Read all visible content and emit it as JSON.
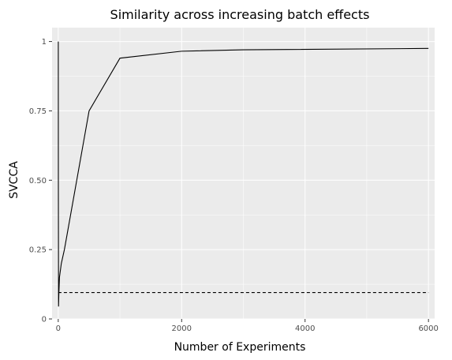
{
  "chart_data": {
    "type": "line",
    "title": "Similarity across increasing batch effects",
    "xlabel": "Number of Experiments",
    "ylabel": "SVCCA",
    "xlim": [
      -100,
      6100
    ],
    "ylim": [
      0,
      1.05
    ],
    "x_ticks": [
      0,
      2000,
      4000,
      6000
    ],
    "x_tick_labels": [
      "0",
      "2000",
      "4000",
      "6000"
    ],
    "y_ticks": [
      0,
      0.25,
      0.5,
      0.75,
      1
    ],
    "y_tick_labels": [
      "0",
      "0.25",
      "0.50",
      "0.75",
      "1"
    ],
    "grid": true,
    "background": "#ebebeb",
    "grid_color": "#ffffff",
    "series": [
      {
        "style": "solid",
        "color": "#000000",
        "x": [
          1,
          2,
          5,
          10,
          20,
          50,
          100,
          500,
          1000,
          2000,
          3000,
          6000
        ],
        "y": [
          1.0,
          0.5,
          0.045,
          0.09,
          0.15,
          0.2,
          0.25,
          0.75,
          0.94,
          0.965,
          0.97,
          0.975
        ]
      },
      {
        "style": "dashed",
        "color": "#000000",
        "x": [
          1,
          6000
        ],
        "y": [
          0.095,
          0.095
        ]
      }
    ]
  }
}
